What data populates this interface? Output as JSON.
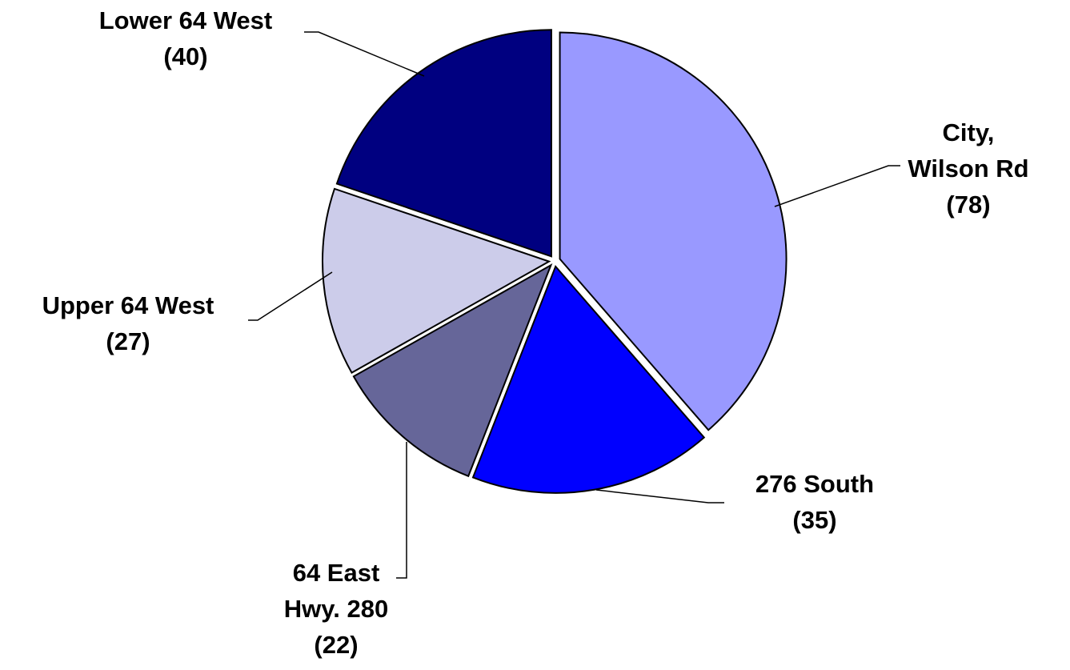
{
  "chart_data": {
    "type": "pie",
    "categories": [
      "City,\nWilson Rd",
      "276 South",
      "64 East\nHwy. 280",
      "Upper 64 West",
      "Lower 64 West"
    ],
    "values": [
      78,
      35,
      22,
      27,
      40
    ],
    "value_labels": [
      "(78)",
      "(35)",
      "(22)",
      "(27)",
      "(40)"
    ],
    "colors": [
      "#9999ff",
      "#0000ff",
      "#666699",
      "#ccccea",
      "#000080"
    ]
  }
}
